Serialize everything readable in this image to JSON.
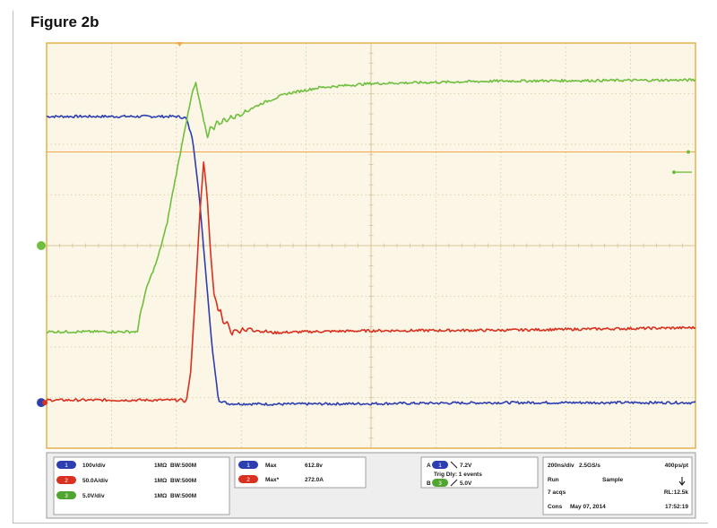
{
  "figure_label": "Figure 2b",
  "colors": {
    "plot_bg": "#fbf6e6",
    "grid": "#d8c59a",
    "border": "#e6b04a",
    "ch1": "#2d3fb0",
    "ch2": "#d9301f",
    "ch3": "#6fbf3e",
    "trigger": "#f0a64a"
  },
  "chart_data": {
    "type": "line",
    "title": "",
    "xlabel": "",
    "ylabel": "",
    "x_unit": "div",
    "y_unit": "div",
    "xlim": [
      0,
      10
    ],
    "ylim": [
      -4,
      4
    ],
    "grid": true,
    "series": [
      {
        "channel": "1",
        "color": "#2d3fb0",
        "points": [
          [
            0,
            2.55
          ],
          [
            2.0,
            2.55
          ],
          [
            2.15,
            2.52
          ],
          [
            2.25,
            2.1
          ],
          [
            2.35,
            1.0
          ],
          [
            2.45,
            -0.5
          ],
          [
            2.55,
            -2.0
          ],
          [
            2.65,
            -3.05
          ],
          [
            2.8,
            -3.12
          ],
          [
            3.5,
            -3.13
          ],
          [
            5.0,
            -3.12
          ],
          [
            7.0,
            -3.1
          ],
          [
            10.0,
            -3.1
          ]
        ]
      },
      {
        "channel": "2",
        "color": "#d9301f",
        "points": [
          [
            0,
            -3.05
          ],
          [
            2.1,
            -3.05
          ],
          [
            2.15,
            -3.1
          ],
          [
            2.22,
            -2.5
          ],
          [
            2.3,
            -0.8
          ],
          [
            2.36,
            0.6
          ],
          [
            2.42,
            1.65
          ],
          [
            2.47,
            1.05
          ],
          [
            2.53,
            -0.2
          ],
          [
            2.58,
            -0.95
          ],
          [
            2.65,
            -1.3
          ],
          [
            2.72,
            -1.45
          ],
          [
            2.85,
            -1.7
          ],
          [
            3.1,
            -1.65
          ],
          [
            3.5,
            -1.72
          ],
          [
            4.0,
            -1.7
          ],
          [
            5.0,
            -1.68
          ],
          [
            7.0,
            -1.67
          ],
          [
            10.0,
            -1.62
          ]
        ]
      },
      {
        "channel": "3",
        "color": "#6fbf3e",
        "points": [
          [
            0,
            -1.7
          ],
          [
            1.4,
            -1.7
          ],
          [
            1.45,
            -1.3
          ],
          [
            1.55,
            -0.8
          ],
          [
            1.7,
            -0.3
          ],
          [
            1.85,
            0.4
          ],
          [
            1.95,
            1.1
          ],
          [
            2.05,
            1.75
          ],
          [
            2.12,
            2.25
          ],
          [
            2.18,
            2.6
          ],
          [
            2.25,
            3.05
          ],
          [
            2.3,
            3.2
          ],
          [
            2.38,
            2.7
          ],
          [
            2.48,
            2.15
          ],
          [
            2.55,
            2.35
          ],
          [
            2.7,
            2.45
          ],
          [
            3.0,
            2.6
          ],
          [
            3.3,
            2.8
          ],
          [
            3.7,
            3.0
          ],
          [
            4.2,
            3.12
          ],
          [
            5.0,
            3.2
          ],
          [
            7.0,
            3.25
          ],
          [
            10.0,
            3.27
          ]
        ]
      }
    ],
    "trigger_level": 1.85,
    "trigger_position": 2.05
  },
  "channels": [
    {
      "badge": "1",
      "scale": "100v/div",
      "coupling": "1MΩ",
      "bw": "BW:500M"
    },
    {
      "badge": "2",
      "scale": "50.0A/div",
      "coupling": "1MΩ",
      "bw": "BW:500M"
    },
    {
      "badge": "3",
      "scale": "5.0V/div",
      "coupling": "1MΩ",
      "bw": "BW:500M"
    }
  ],
  "measurements": [
    {
      "badge": "1",
      "name": "Max",
      "value": "612.8v"
    },
    {
      "badge": "2",
      "name": "Max*",
      "value": "272.0A"
    }
  ],
  "trigger_panel": {
    "a_label": "A",
    "a_badge": "1",
    "a_value": "7.2V",
    "delay": "Trig Dly: 1 events",
    "b_label": "B",
    "b_badge": "3",
    "b_value": "5.0V"
  },
  "status_panel": {
    "timebase": "200ns/div",
    "sample_rate": "2.5GS/s",
    "pts": "400ps/pt",
    "run": "Run",
    "mode": "Sample",
    "acqs": "7 acqs",
    "rl": "RL:12.5k",
    "cons": "Cons",
    "date": "May 07, 2014",
    "time": "17:52:19"
  }
}
